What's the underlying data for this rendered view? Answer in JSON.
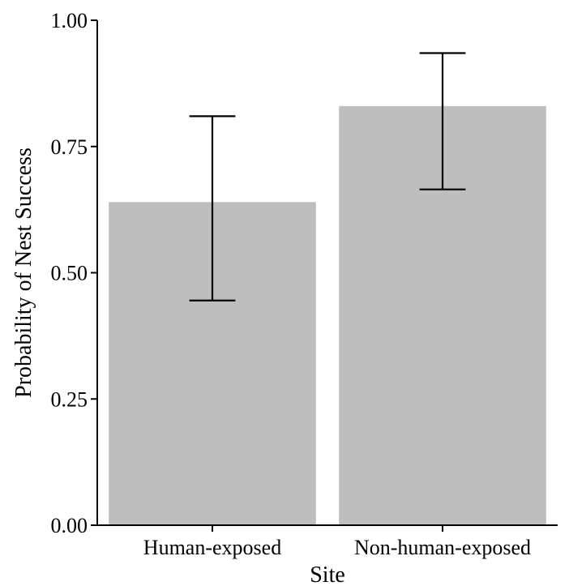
{
  "chart_data": {
    "type": "bar",
    "title": "",
    "xlabel": "Site",
    "ylabel": "Probability of Nest Success",
    "categories": [
      "Human-exposed",
      "Non-human-exposed"
    ],
    "values": [
      0.64,
      0.83
    ],
    "error_low": [
      0.445,
      0.665
    ],
    "error_high": [
      0.81,
      0.935
    ],
    "ylim": [
      0,
      1
    ],
    "yticks": [
      0.0,
      0.25,
      0.5,
      0.75,
      1.0
    ],
    "ytick_labels": [
      "0.00",
      "0.25",
      "0.50",
      "0.75",
      "1.00"
    ],
    "bar_color": "#bebebe",
    "grid": false,
    "legend": "none"
  }
}
